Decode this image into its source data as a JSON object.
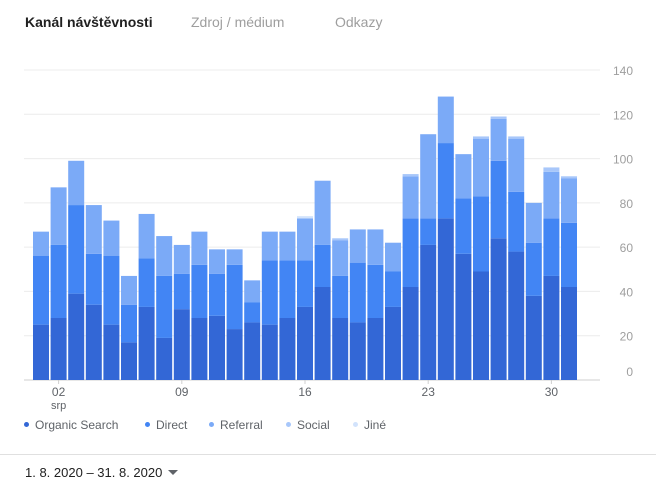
{
  "tabs": [
    {
      "label": "Kanál návštěvnosti",
      "active": true
    },
    {
      "label": "Zdroj / médium",
      "active": false
    },
    {
      "label": "Odkazy",
      "active": false
    }
  ],
  "date_range": "1. 8. 2020 – 31. 8. 2020",
  "colors": {
    "Organic Search": "#3367d6",
    "Direct": "#4285f4",
    "Referral": "#7baaf7",
    "Social": "#a8c7fa",
    "Jiné": "#d2e3fc"
  },
  "chart_data": {
    "type": "bar",
    "stacked": true,
    "x_tick_labels": [
      {
        "day": 2,
        "label": "02",
        "sublabel": "srp"
      },
      {
        "day": 9,
        "label": "09"
      },
      {
        "day": 16,
        "label": "16"
      },
      {
        "day": 23,
        "label": "23"
      },
      {
        "day": 30,
        "label": "30"
      }
    ],
    "categories": [
      1,
      2,
      3,
      4,
      5,
      6,
      7,
      8,
      9,
      10,
      11,
      12,
      13,
      14,
      15,
      16,
      17,
      18,
      19,
      20,
      21,
      22,
      23,
      24,
      25,
      26,
      27,
      28,
      29,
      30,
      31
    ],
    "ylim": [
      0,
      140
    ],
    "y_ticks": [
      0,
      20,
      40,
      60,
      80,
      100,
      120,
      140
    ],
    "grid": true,
    "legend_position": "bottom-left",
    "series": [
      {
        "name": "Organic Search",
        "values": [
          25,
          28,
          39,
          34,
          25,
          17,
          33,
          19,
          32,
          28,
          29,
          23,
          26,
          25,
          28,
          33,
          42,
          28,
          26,
          28,
          33,
          42,
          61,
          73,
          57,
          49,
          64,
          58,
          38,
          47,
          42
        ]
      },
      {
        "name": "Direct",
        "values": [
          31,
          33,
          40,
          23,
          31,
          17,
          22,
          28,
          16,
          24,
          19,
          29,
          9,
          29,
          26,
          21,
          19,
          19,
          27,
          24,
          16,
          31,
          12,
          34,
          25,
          34,
          35,
          27,
          24,
          26,
          29
        ]
      },
      {
        "name": "Referral",
        "values": [
          11,
          26,
          20,
          22,
          16,
          13,
          20,
          18,
          13,
          15,
          11,
          7,
          10,
          13,
          13,
          19,
          29,
          16,
          15,
          16,
          13,
          19,
          38,
          21,
          20,
          26,
          19,
          24,
          18,
          21,
          20
        ]
      },
      {
        "name": "Social",
        "values": [
          0,
          0,
          0,
          0,
          0,
          0,
          0,
          0,
          0,
          0,
          0,
          0,
          0,
          0,
          0,
          0,
          0,
          1,
          0,
          0,
          0,
          1,
          0,
          0,
          0,
          1,
          1,
          1,
          0,
          2,
          1
        ]
      },
      {
        "name": "Jiné",
        "values": [
          0,
          0,
          0,
          0,
          0,
          0,
          0,
          0,
          0,
          0,
          0,
          0,
          0,
          0,
          0,
          1,
          0,
          0,
          0,
          0,
          0,
          0,
          0,
          0,
          0,
          0,
          0,
          0,
          0,
          0,
          0
        ]
      }
    ]
  }
}
